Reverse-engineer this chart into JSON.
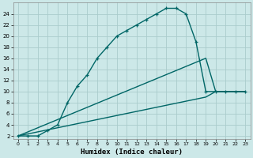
{
  "xlabel": "Humidex (Indice chaleur)",
  "bg_color": "#cce8e8",
  "grid_color": "#aacccc",
  "line_color": "#006666",
  "xlim_min": -0.5,
  "xlim_max": 23.5,
  "ylim_min": 1.5,
  "ylim_max": 26.0,
  "xtick_vals": [
    0,
    1,
    2,
    3,
    4,
    5,
    6,
    7,
    8,
    9,
    10,
    11,
    12,
    13,
    14,
    15,
    16,
    17,
    18,
    19,
    20,
    21,
    22,
    23
  ],
  "ytick_vals": [
    2,
    4,
    6,
    8,
    10,
    12,
    14,
    16,
    18,
    20,
    22,
    24
  ],
  "curve_main_x": [
    0,
    1,
    2,
    3,
    4,
    5,
    6,
    7,
    8,
    9,
    10,
    11,
    12,
    13,
    14,
    15,
    16,
    17,
    18,
    19,
    20,
    21,
    22,
    23
  ],
  "curve_main_y": [
    2,
    2,
    2,
    3,
    4,
    8,
    11,
    13,
    16,
    18,
    20,
    21,
    22,
    23,
    24,
    25,
    25,
    24,
    19,
    10,
    10,
    10,
    10,
    10
  ],
  "curve_tri1_x": [
    0,
    19,
    20,
    21,
    22,
    23
  ],
  "curve_tri1_y": [
    2,
    16,
    10,
    10,
    10,
    10
  ],
  "curve_tri2_x": [
    0,
    19,
    20,
    21,
    22,
    23
  ],
  "curve_tri2_y": [
    2,
    9,
    10,
    10,
    10,
    10
  ],
  "marker_main_x": [
    0,
    1,
    2,
    3,
    4,
    5,
    6,
    7,
    8,
    9,
    10,
    11,
    12,
    13,
    14,
    15,
    16,
    17,
    18,
    19,
    20,
    21,
    22,
    23
  ],
  "marker_main_y": [
    2,
    2,
    2,
    3,
    4,
    8,
    11,
    13,
    16,
    18,
    20,
    21,
    22,
    23,
    24,
    25,
    25,
    24,
    19,
    10,
    10,
    10,
    10,
    10
  ]
}
